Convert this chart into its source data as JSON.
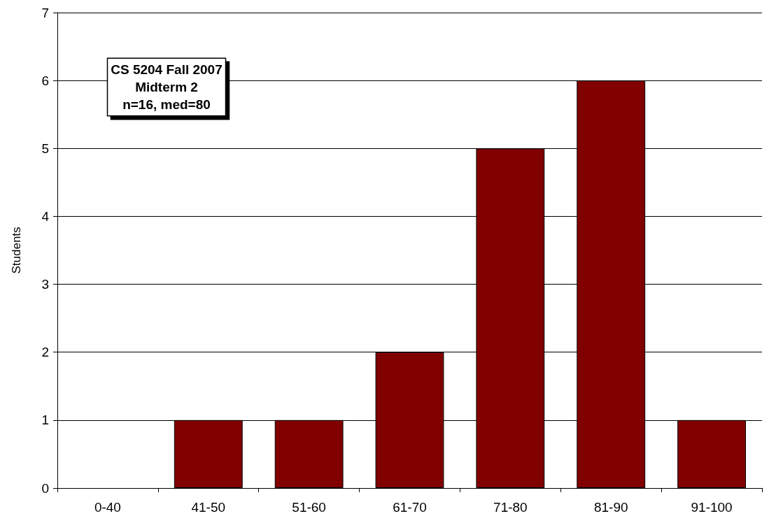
{
  "chart_data": {
    "type": "bar",
    "ylabel": "Students",
    "categories": [
      "0-40",
      "41-50",
      "51-60",
      "61-70",
      "71-80",
      "81-90",
      "91-100"
    ],
    "values": [
      0,
      1,
      1,
      2,
      5,
      6,
      1
    ],
    "color": "#800000",
    "ylim": [
      0,
      7
    ],
    "yticks": [
      0,
      1,
      2,
      3,
      4,
      5,
      6,
      7
    ],
    "grid": "y",
    "annotations": [
      "CS 5204 Fall 2007\nMidterm 2\nn=16, med=80"
    ]
  }
}
